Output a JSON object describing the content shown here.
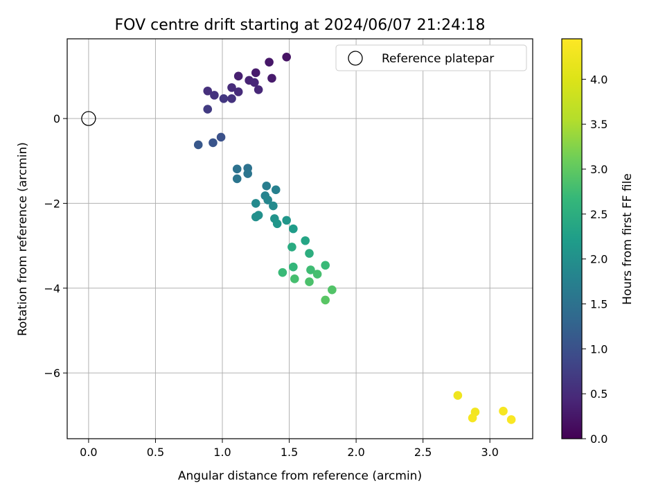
{
  "chart_data": {
    "type": "scatter",
    "title": "FOV centre drift starting at 2024/06/07 21:24:18",
    "xlabel": "Angular distance from reference (arcmin)",
    "ylabel": "Rotation from reference (arcmin)",
    "xlim": [
      -0.16,
      3.32
    ],
    "ylim": [
      -7.55,
      1.88
    ],
    "xticks": [
      0.0,
      0.5,
      1.0,
      1.5,
      2.0,
      2.5,
      3.0
    ],
    "xtick_labels": [
      "0.0",
      "0.5",
      "1.0",
      "1.5",
      "2.0",
      "2.5",
      "3.0"
    ],
    "yticks": [
      -6,
      -4,
      -2,
      0
    ],
    "ytick_labels": [
      "−6",
      "−4",
      "−2",
      "0"
    ],
    "grid": true,
    "legend": {
      "position": "upper-right",
      "entries": [
        "Reference platepar"
      ]
    },
    "reference_point": {
      "x": 0.0,
      "y": 0.0
    },
    "colorbar": {
      "label": "Hours from first FF file",
      "colormap": "viridis",
      "range": [
        0.0,
        4.45
      ],
      "ticks": [
        0.0,
        0.5,
        1.0,
        1.5,
        2.0,
        2.5,
        3.0,
        3.5,
        4.0
      ],
      "tick_labels": [
        "0.0",
        "0.5",
        "1.0",
        "1.5",
        "2.0",
        "2.5",
        "3.0",
        "3.5",
        "4.0"
      ]
    },
    "points": [
      {
        "x": 1.48,
        "y": 1.45,
        "c": 0.2
      },
      {
        "x": 1.35,
        "y": 1.33,
        "c": 0.25
      },
      {
        "x": 1.25,
        "y": 1.08,
        "c": 0.3
      },
      {
        "x": 1.12,
        "y": 1.0,
        "c": 0.35
      },
      {
        "x": 1.37,
        "y": 0.95,
        "c": 0.3
      },
      {
        "x": 1.2,
        "y": 0.9,
        "c": 0.4
      },
      {
        "x": 1.24,
        "y": 0.85,
        "c": 0.45
      },
      {
        "x": 1.07,
        "y": 0.73,
        "c": 0.5
      },
      {
        "x": 1.27,
        "y": 0.68,
        "c": 0.45
      },
      {
        "x": 0.89,
        "y": 0.65,
        "c": 0.55
      },
      {
        "x": 1.12,
        "y": 0.63,
        "c": 0.5
      },
      {
        "x": 0.94,
        "y": 0.55,
        "c": 0.6
      },
      {
        "x": 1.01,
        "y": 0.47,
        "c": 0.65
      },
      {
        "x": 1.07,
        "y": 0.47,
        "c": 0.6
      },
      {
        "x": 0.89,
        "y": 0.22,
        "c": 0.7
      },
      {
        "x": 0.99,
        "y": -0.44,
        "c": 1.0
      },
      {
        "x": 0.93,
        "y": -0.57,
        "c": 1.05
      },
      {
        "x": 0.82,
        "y": -0.62,
        "c": 1.1
      },
      {
        "x": 1.11,
        "y": -1.19,
        "c": 1.5
      },
      {
        "x": 1.19,
        "y": -1.17,
        "c": 1.5
      },
      {
        "x": 1.19,
        "y": -1.3,
        "c": 1.55
      },
      {
        "x": 1.11,
        "y": -1.42,
        "c": 1.55
      },
      {
        "x": 1.33,
        "y": -1.59,
        "c": 1.7
      },
      {
        "x": 1.4,
        "y": -1.68,
        "c": 1.75
      },
      {
        "x": 1.32,
        "y": -1.82,
        "c": 1.8
      },
      {
        "x": 1.34,
        "y": -1.92,
        "c": 1.85
      },
      {
        "x": 1.25,
        "y": -2.0,
        "c": 1.9
      },
      {
        "x": 1.38,
        "y": -2.06,
        "c": 1.9
      },
      {
        "x": 1.27,
        "y": -2.28,
        "c": 2.0
      },
      {
        "x": 1.25,
        "y": -2.32,
        "c": 2.0
      },
      {
        "x": 1.39,
        "y": -2.36,
        "c": 2.05
      },
      {
        "x": 1.48,
        "y": -2.4,
        "c": 2.1
      },
      {
        "x": 1.41,
        "y": -2.48,
        "c": 2.1
      },
      {
        "x": 1.53,
        "y": -2.6,
        "c": 2.2
      },
      {
        "x": 1.62,
        "y": -2.88,
        "c": 2.35
      },
      {
        "x": 1.52,
        "y": -3.03,
        "c": 2.45
      },
      {
        "x": 1.65,
        "y": -3.18,
        "c": 2.5
      },
      {
        "x": 1.77,
        "y": -3.46,
        "c": 2.7
      },
      {
        "x": 1.53,
        "y": -3.5,
        "c": 2.65
      },
      {
        "x": 1.66,
        "y": -3.57,
        "c": 2.75
      },
      {
        "x": 1.45,
        "y": -3.63,
        "c": 2.7
      },
      {
        "x": 1.71,
        "y": -3.67,
        "c": 2.8
      },
      {
        "x": 1.54,
        "y": -3.78,
        "c": 2.8
      },
      {
        "x": 1.65,
        "y": -3.85,
        "c": 2.85
      },
      {
        "x": 1.82,
        "y": -4.04,
        "c": 2.9
      },
      {
        "x": 1.77,
        "y": -4.28,
        "c": 2.95
      },
      {
        "x": 2.76,
        "y": -6.53,
        "c": 4.25
      },
      {
        "x": 2.89,
        "y": -6.92,
        "c": 4.3
      },
      {
        "x": 3.1,
        "y": -6.9,
        "c": 4.35
      },
      {
        "x": 2.87,
        "y": -7.06,
        "c": 4.35
      },
      {
        "x": 3.16,
        "y": -7.1,
        "c": 4.4
      }
    ]
  }
}
